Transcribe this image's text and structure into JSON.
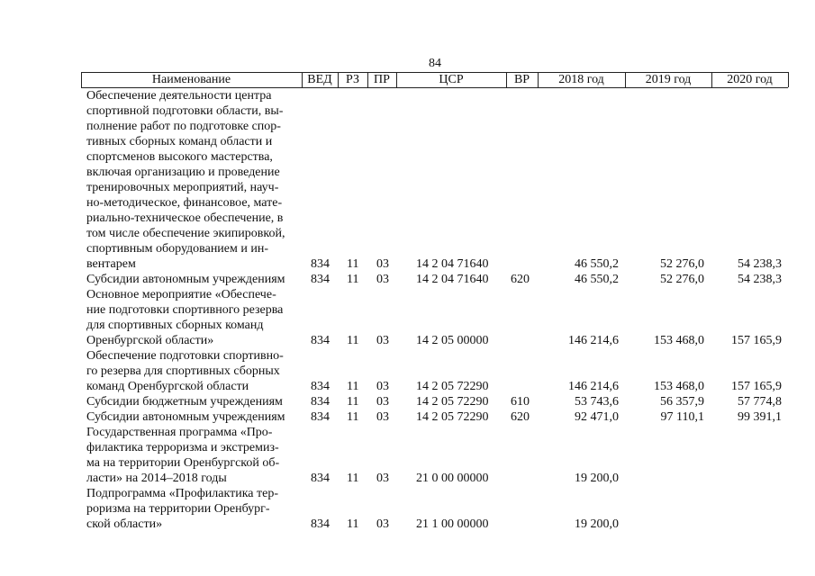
{
  "page_number": "84",
  "header": {
    "columns": [
      "Наименование",
      "ВЕД",
      "РЗ",
      "ПР",
      "ЦСР",
      "ВР",
      "2018 год",
      "2019 год",
      "2020 год"
    ]
  },
  "table": {
    "rows": [
      {
        "name": [
          "Обеспечение деятельности центра",
          "спортивной подготовки области, вы-",
          "полнение работ по подготовке спор-",
          "тивных сборных команд области и",
          "спортсменов высокого мастерства,",
          "включая организацию и проведение",
          "тренировочных мероприятий, науч-",
          "но-методическое, финансовое, мате-",
          "риально-техническое обеспечение, в",
          "том числе обеспечение экипировкой,",
          "спортивным оборудованием и ин-",
          "вентарем"
        ],
        "ved": "834",
        "rz": "11",
        "pr": "03",
        "csr": "14 2 04 71640",
        "y2018": "46 550,2",
        "y2019": "52 276,0",
        "y2020": "54 238,3"
      },
      {
        "name": [
          "Субсидии автономным учреждениям"
        ],
        "ved": "834",
        "rz": "11",
        "pr": "03",
        "csr": "14 2 04 71640",
        "vr": "620",
        "y2018": "46 550,2",
        "y2019": "52 276,0",
        "y2020": "54 238,3"
      },
      {
        "name": [
          "Основное мероприятие «Обеспече-",
          "ние подготовки спортивного резерва",
          "для спортивных сборных команд",
          "Оренбургской области»"
        ],
        "ved": "834",
        "rz": "11",
        "pr": "03",
        "csr": "14 2 05 00000",
        "y2018": "146 214,6",
        "y2019": "153 468,0",
        "y2020": "157 165,9"
      },
      {
        "name": [
          "Обеспечение подготовки спортивно-",
          "го резерва для спортивных сборных",
          "команд Оренбургской области"
        ],
        "ved": "834",
        "rz": "11",
        "pr": "03",
        "csr": "14 2 05 72290",
        "y2018": "146 214,6",
        "y2019": "153 468,0",
        "y2020": "157 165,9"
      },
      {
        "name": [
          "Субсидии бюджетным учреждениям"
        ],
        "ved": "834",
        "rz": "11",
        "pr": "03",
        "csr": "14 2 05 72290",
        "vr": "610",
        "y2018": "53 743,6",
        "y2019": "56 357,9",
        "y2020": "57 774,8"
      },
      {
        "name": [
          "Субсидии автономным учреждениям"
        ],
        "ved": "834",
        "rz": "11",
        "pr": "03",
        "csr": "14 2 05 72290",
        "vr": "620",
        "y2018": "92 471,0",
        "y2019": "97 110,1",
        "y2020": "99 391,1"
      },
      {
        "name": [
          "Государственная программа «Про-",
          "филактика терроризма и экстремиз-",
          "ма на территории Оренбургской об-",
          "ласти» на 2014–2018 годы"
        ],
        "ved": "834",
        "rz": "11",
        "pr": "03",
        "csr": "21 0 00 00000",
        "y2018": "19 200,0"
      },
      {
        "name": [
          "Подпрограмма «Профилактика тер-",
          "роризма на территории Оренбург-",
          "ской области»"
        ],
        "ved": "834",
        "rz": "11",
        "pr": "03",
        "csr": "21 1 00 00000",
        "y2018": "19 200,0"
      }
    ]
  }
}
